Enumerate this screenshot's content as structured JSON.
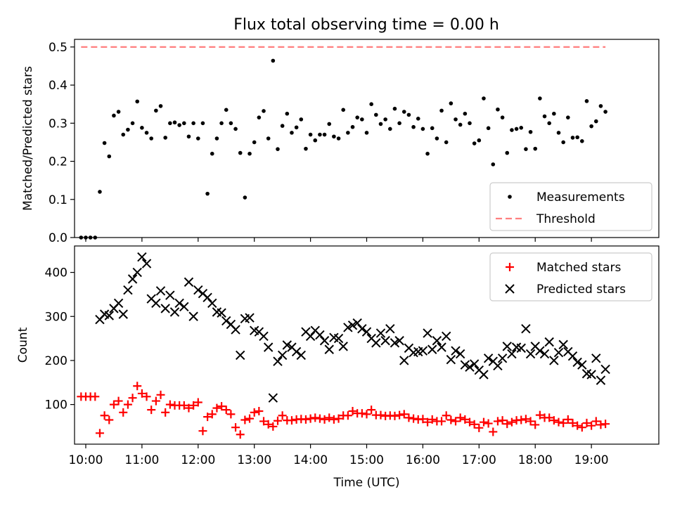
{
  "title": "Flux total observing time = 0.00 h",
  "colors": {
    "measurement": "#000000",
    "threshold": "#ff7f7f",
    "matched": "#ff0000",
    "predicted": "#000000"
  },
  "chart_data": [
    {
      "type": "scatter",
      "title": "Flux total observing time = 0.00 h",
      "xlabel": "",
      "ylabel": "Matched/Predicted stars",
      "xlim": [
        "09:48",
        "20:12"
      ],
      "ylim": [
        0,
        0.52
      ],
      "yticks": [
        "0.0",
        "0.1",
        "0.2",
        "0.3",
        "0.4",
        "0.5"
      ],
      "legend": "lower-right",
      "series": [
        {
          "name": "Measurements",
          "marker": "dot",
          "x": [
            "09:55",
            "10:00",
            "10:05",
            "10:10",
            "10:15",
            "10:20",
            "10:25",
            "10:30",
            "10:35",
            "10:40",
            "10:45",
            "10:50",
            "10:55",
            "11:00",
            "11:05",
            "11:10",
            "11:15",
            "11:20",
            "11:25",
            "11:30",
            "11:35",
            "11:40",
            "11:45",
            "11:50",
            "11:55",
            "12:00",
            "12:05",
            "12:10",
            "12:15",
            "12:20",
            "12:25",
            "12:30",
            "12:35",
            "12:40",
            "12:45",
            "12:50",
            "12:55",
            "13:00",
            "13:05",
            "13:10",
            "13:15",
            "13:20",
            "13:25",
            "13:30",
            "13:35",
            "13:40",
            "13:45",
            "13:50",
            "13:55",
            "14:00",
            "14:05",
            "14:10",
            "14:15",
            "14:20",
            "14:25",
            "14:30",
            "14:35",
            "14:40",
            "14:45",
            "14:50",
            "14:55",
            "15:00",
            "15:05",
            "15:10",
            "15:15",
            "15:20",
            "15:25",
            "15:30",
            "15:35",
            "15:40",
            "15:45",
            "15:50",
            "15:55",
            "16:00",
            "16:05",
            "16:10",
            "16:15",
            "16:20",
            "16:25",
            "16:30",
            "16:35",
            "16:40",
            "16:45",
            "16:50",
            "16:55",
            "17:00",
            "17:05",
            "17:10",
            "17:15",
            "17:20",
            "17:25",
            "17:30",
            "17:35",
            "17:40",
            "17:45",
            "17:50",
            "17:55",
            "18:00",
            "18:05",
            "18:10",
            "18:15",
            "18:20",
            "18:25",
            "18:30",
            "18:35",
            "18:40",
            "18:45",
            "18:50",
            "18:55",
            "19:00",
            "19:05",
            "19:10",
            "19:15"
          ],
          "y": [
            0.0,
            0.0,
            0.0,
            0.0,
            0.12,
            0.248,
            0.213,
            0.32,
            0.33,
            0.27,
            0.283,
            0.3,
            0.357,
            0.288,
            0.275,
            0.26,
            0.333,
            0.345,
            0.262,
            0.3,
            0.302,
            0.295,
            0.3,
            0.265,
            0.3,
            0.26,
            0.3,
            0.115,
            0.22,
            0.26,
            0.3,
            0.335,
            0.3,
            0.285,
            0.222,
            0.105,
            0.22,
            0.25,
            0.315,
            0.332,
            0.26,
            0.464,
            0.232,
            0.293,
            0.325,
            0.275,
            0.289,
            0.31,
            0.233,
            0.27,
            0.255,
            0.27,
            0.27,
            0.298,
            0.265,
            0.26,
            0.335,
            0.275,
            0.29,
            0.315,
            0.31,
            0.275,
            0.35,
            0.322,
            0.298,
            0.31,
            0.285,
            0.338,
            0.3,
            0.33,
            0.322,
            0.29,
            0.312,
            0.285,
            0.22,
            0.287,
            0.26,
            0.333,
            0.25,
            0.352,
            0.31,
            0.296,
            0.325,
            0.3,
            0.247,
            0.255,
            0.365,
            0.287,
            0.192,
            0.336,
            0.315,
            0.222,
            0.282,
            0.285,
            0.288,
            0.232,
            0.277,
            0.233,
            0.365,
            0.318,
            0.3,
            0.325,
            0.275,
            0.25,
            0.315,
            0.262,
            0.263,
            0.253,
            0.358,
            0.292,
            0.305,
            0.345,
            0.33
          ]
        },
        {
          "name": "Threshold",
          "marker": "dashed-line",
          "x": [
            "09:55",
            "19:15"
          ],
          "y": [
            0.5,
            0.5
          ]
        }
      ]
    },
    {
      "type": "scatter",
      "xlabel": "Time (UTC)",
      "ylabel": "Count",
      "xlim": [
        "09:48",
        "20:12"
      ],
      "ylim": [
        10,
        460
      ],
      "xticks": [
        "10:00",
        "11:00",
        "12:00",
        "13:00",
        "14:00",
        "15:00",
        "16:00",
        "17:00",
        "18:00",
        "19:00"
      ],
      "yticks": [
        "100",
        "200",
        "300",
        "400"
      ],
      "legend": "top-right",
      "series": [
        {
          "name": "Matched stars",
          "marker": "plus",
          "x": [
            "09:55",
            "10:00",
            "10:05",
            "10:10",
            "10:15",
            "10:20",
            "10:25",
            "10:30",
            "10:35",
            "10:40",
            "10:45",
            "10:50",
            "10:55",
            "11:00",
            "11:05",
            "11:10",
            "11:15",
            "11:20",
            "11:25",
            "11:30",
            "11:35",
            "11:40",
            "11:45",
            "11:50",
            "11:55",
            "12:00",
            "12:05",
            "12:10",
            "12:15",
            "12:20",
            "12:25",
            "12:30",
            "12:35",
            "12:40",
            "12:45",
            "12:50",
            "12:55",
            "13:00",
            "13:05",
            "13:10",
            "13:15",
            "13:20",
            "13:25",
            "13:30",
            "13:35",
            "13:40",
            "13:45",
            "13:50",
            "13:55",
            "14:00",
            "14:05",
            "14:10",
            "14:15",
            "14:20",
            "14:25",
            "14:30",
            "14:35",
            "14:40",
            "14:45",
            "14:50",
            "14:55",
            "15:00",
            "15:05",
            "15:10",
            "15:15",
            "15:20",
            "15:25",
            "15:30",
            "15:35",
            "15:40",
            "15:45",
            "15:50",
            "15:55",
            "16:00",
            "16:05",
            "16:10",
            "16:15",
            "16:20",
            "16:25",
            "16:30",
            "16:35",
            "16:40",
            "16:45",
            "16:50",
            "16:55",
            "17:00",
            "17:05",
            "17:10",
            "17:15",
            "17:20",
            "17:25",
            "17:30",
            "17:35",
            "17:40",
            "17:45",
            "17:50",
            "17:55",
            "18:00",
            "18:05",
            "18:10",
            "18:15",
            "18:20",
            "18:25",
            "18:30",
            "18:35",
            "18:40",
            "18:45",
            "18:50",
            "18:55",
            "19:00",
            "19:05",
            "19:10",
            "19:15"
          ],
          "y": [
            118,
            118,
            118,
            118,
            35,
            75,
            65,
            100,
            108,
            82,
            100,
            115,
            142,
            125,
            118,
            88,
            108,
            122,
            82,
            100,
            98,
            98,
            98,
            92,
            98,
            105,
            40,
            72,
            78,
            92,
            96,
            88,
            78,
            48,
            32,
            65,
            68,
            82,
            85,
            62,
            55,
            50,
            63,
            75,
            64,
            64,
            66,
            67,
            66,
            68,
            70,
            68,
            66,
            70,
            66,
            68,
            75,
            75,
            85,
            80,
            80,
            78,
            88,
            76,
            76,
            74,
            75,
            74,
            76,
            78,
            70,
            68,
            66,
            67,
            60,
            66,
            62,
            62,
            75,
            65,
            62,
            70,
            66,
            60,
            55,
            47,
            60,
            57,
            38,
            62,
            64,
            56,
            60,
            64,
            65,
            67,
            62,
            54,
            76,
            70,
            70,
            64,
            60,
            58,
            66,
            58,
            52,
            48,
            58,
            52,
            62,
            54,
            56
          ]
        },
        {
          "name": "Predicted stars",
          "marker": "x",
          "x": [
            "10:15",
            "10:20",
            "10:25",
            "10:30",
            "10:35",
            "10:40",
            "10:45",
            "10:50",
            "10:55",
            "11:00",
            "11:05",
            "11:10",
            "11:15",
            "11:20",
            "11:25",
            "11:30",
            "11:35",
            "11:40",
            "11:45",
            "11:50",
            "11:55",
            "12:00",
            "12:05",
            "12:10",
            "12:15",
            "12:20",
            "12:25",
            "12:30",
            "12:35",
            "12:40",
            "12:45",
            "12:50",
            "12:55",
            "13:00",
            "13:05",
            "13:10",
            "13:15",
            "13:20",
            "13:25",
            "13:30",
            "13:35",
            "13:40",
            "13:45",
            "13:50",
            "13:55",
            "14:00",
            "14:05",
            "14:10",
            "14:15",
            "14:20",
            "14:25",
            "14:30",
            "14:35",
            "14:40",
            "14:45",
            "14:50",
            "14:55",
            "15:00",
            "15:05",
            "15:10",
            "15:15",
            "15:20",
            "15:25",
            "15:30",
            "15:35",
            "15:40",
            "15:45",
            "15:50",
            "15:55",
            "16:00",
            "16:05",
            "16:10",
            "16:15",
            "16:20",
            "16:25",
            "16:30",
            "16:35",
            "16:40",
            "16:45",
            "16:50",
            "16:55",
            "17:00",
            "17:05",
            "17:10",
            "17:15",
            "17:20",
            "17:25",
            "17:30",
            "17:35",
            "17:40",
            "17:45",
            "17:50",
            "17:55",
            "18:00",
            "18:05",
            "18:10",
            "18:15",
            "18:20",
            "18:25",
            "18:30",
            "18:35",
            "18:40",
            "18:45",
            "18:50",
            "18:55",
            "19:00",
            "19:05",
            "19:10",
            "19:15"
          ],
          "y": [
            293,
            305,
            302,
            318,
            330,
            305,
            360,
            385,
            400,
            435,
            420,
            340,
            330,
            358,
            318,
            348,
            310,
            330,
            322,
            378,
            300,
            360,
            352,
            343,
            330,
            310,
            308,
            290,
            282,
            270,
            212,
            295,
            297,
            268,
            265,
            255,
            230,
            115,
            198,
            212,
            235,
            230,
            220,
            212,
            265,
            255,
            268,
            258,
            245,
            225,
            252,
            250,
            232,
            275,
            280,
            285,
            272,
            265,
            250,
            240,
            262,
            245,
            272,
            240,
            245,
            200,
            228,
            218,
            220,
            222,
            262,
            225,
            245,
            230,
            255,
            202,
            222,
            215,
            190,
            185,
            192,
            178,
            168,
            205,
            198,
            188,
            205,
            232,
            215,
            230,
            228,
            272,
            215,
            232,
            222,
            215,
            242,
            200,
            218,
            236,
            220,
            210,
            196,
            190,
            170,
            168,
            205,
            155,
            180
          ]
        }
      ]
    }
  ]
}
